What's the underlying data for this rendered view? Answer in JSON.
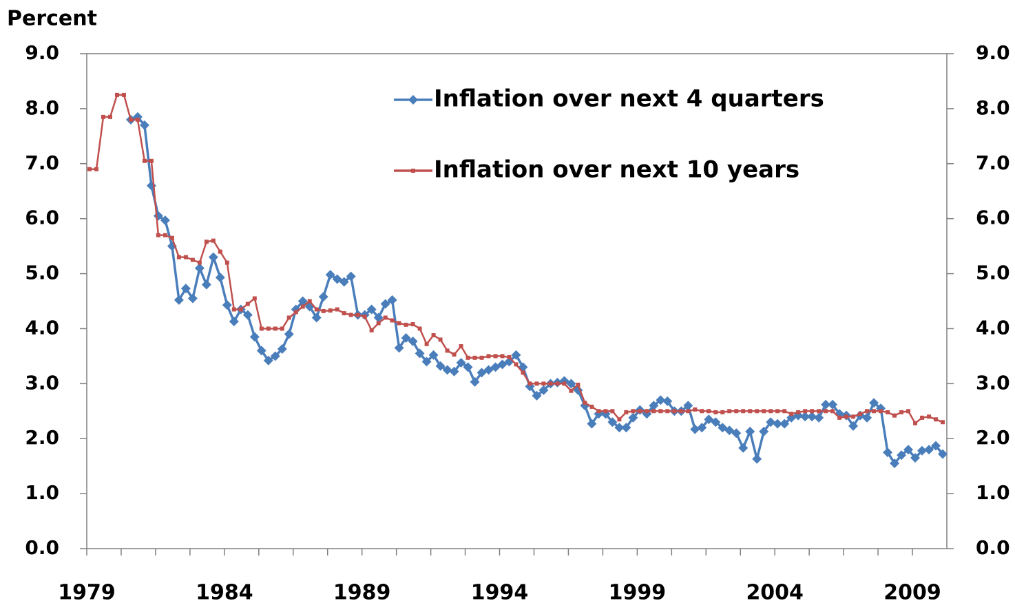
{
  "chart_data": {
    "type": "line",
    "y_label": "Percent",
    "categories": [
      "1979",
      null,
      null,
      null,
      null,
      null,
      null,
      null,
      null,
      null,
      null,
      null,
      null,
      null,
      null,
      null,
      null,
      null,
      null,
      null,
      "1984",
      null,
      null,
      null,
      null,
      null,
      null,
      null,
      null,
      null,
      null,
      null,
      null,
      null,
      null,
      null,
      null,
      null,
      null,
      null,
      "1989",
      null,
      null,
      null,
      null,
      null,
      null,
      null,
      null,
      null,
      null,
      null,
      null,
      null,
      null,
      null,
      null,
      null,
      null,
      null,
      "1994",
      null,
      null,
      null,
      null,
      null,
      null,
      null,
      null,
      null,
      null,
      null,
      null,
      null,
      null,
      null,
      null,
      null,
      null,
      null,
      "1999",
      null,
      null,
      null,
      null,
      null,
      null,
      null,
      null,
      null,
      null,
      null,
      null,
      null,
      null,
      null,
      null,
      null,
      null,
      null,
      "2004",
      null,
      null,
      null,
      null,
      null,
      null,
      null,
      null,
      null,
      null,
      null,
      null,
      null,
      null,
      null,
      null,
      null,
      null,
      null,
      "2009",
      null,
      null,
      null,
      null
    ],
    "series": [
      {
        "name": "Inflation over next 4 quarters",
        "color": "#4a7ebb",
        "marker": "diamond",
        "values": [
          null,
          null,
          null,
          null,
          null,
          null,
          7.8,
          7.85,
          7.7,
          6.6,
          6.05,
          5.97,
          5.5,
          4.52,
          4.73,
          4.55,
          5.1,
          4.8,
          5.3,
          4.93,
          4.43,
          4.13,
          4.35,
          4.25,
          3.85,
          3.6,
          3.42,
          3.5,
          3.63,
          3.9,
          4.35,
          4.5,
          4.4,
          4.2,
          4.58,
          4.98,
          4.9,
          4.85,
          4.95,
          4.25,
          4.25,
          4.35,
          4.2,
          4.45,
          4.52,
          3.65,
          3.83,
          3.77,
          3.55,
          3.4,
          3.52,
          3.32,
          3.25,
          3.22,
          3.38,
          3.3,
          3.03,
          3.2,
          3.25,
          3.3,
          3.35,
          3.4,
          3.52,
          3.3,
          2.95,
          2.78,
          2.88,
          3.0,
          3.02,
          3.05,
          3.0,
          2.88,
          2.6,
          2.27,
          2.45,
          2.45,
          2.3,
          2.2,
          2.2,
          2.38,
          2.52,
          2.45,
          2.6,
          2.7,
          2.68,
          2.5,
          2.5,
          2.6,
          2.17,
          2.2,
          2.35,
          2.3,
          2.2,
          2.15,
          2.1,
          1.83,
          2.13,
          1.63,
          2.13,
          2.3,
          2.27,
          2.27,
          2.38,
          2.42,
          2.4,
          2.4,
          2.38,
          2.62,
          2.62,
          2.45,
          2.42,
          2.23,
          2.42,
          2.38,
          2.65,
          2.55,
          1.75,
          1.55,
          1.7,
          1.8,
          1.65,
          1.78,
          1.8,
          1.87,
          1.72
        ]
      },
      {
        "name": "Inflation over next 10 years",
        "color": "#c0504d",
        "marker": "square",
        "values": [
          6.9,
          6.9,
          7.85,
          7.85,
          8.25,
          8.25,
          7.8,
          7.8,
          7.05,
          7.05,
          5.7,
          5.7,
          5.65,
          5.3,
          5.3,
          5.25,
          5.2,
          5.58,
          5.6,
          5.4,
          5.2,
          4.35,
          4.35,
          4.45,
          4.55,
          4.0,
          4.0,
          4.0,
          4.0,
          4.2,
          4.3,
          4.4,
          4.5,
          4.35,
          4.32,
          4.33,
          4.35,
          4.28,
          4.25,
          4.25,
          4.22,
          3.97,
          4.1,
          4.2,
          4.15,
          4.1,
          4.07,
          4.08,
          4.0,
          3.72,
          3.88,
          3.8,
          3.6,
          3.53,
          3.68,
          3.47,
          3.47,
          3.47,
          3.5,
          3.5,
          3.5,
          3.48,
          3.35,
          3.2,
          3.0,
          3.0,
          3.0,
          3.0,
          3.0,
          3.0,
          2.87,
          2.98,
          2.65,
          2.58,
          2.5,
          2.5,
          2.5,
          2.35,
          2.48,
          2.5,
          2.5,
          2.5,
          2.5,
          2.5,
          2.5,
          2.5,
          2.5,
          2.5,
          2.53,
          2.5,
          2.5,
          2.48,
          2.48,
          2.5,
          2.5,
          2.5,
          2.5,
          2.5,
          2.5,
          2.5,
          2.5,
          2.5,
          2.45,
          2.48,
          2.5,
          2.5,
          2.5,
          2.5,
          2.5,
          2.38,
          2.4,
          2.4,
          2.45,
          2.5,
          2.5,
          2.5,
          2.48,
          2.42,
          2.48,
          2.5,
          2.28,
          2.38,
          2.4,
          2.35,
          2.3
        ]
      }
    ],
    "ylim": [
      0,
      9
    ],
    "yticks": [
      {
        "value": 0,
        "label": "0.0"
      },
      {
        "value": 1,
        "label": "1.0"
      },
      {
        "value": 2,
        "label": "2.0"
      },
      {
        "value": 3,
        "label": "3.0"
      },
      {
        "value": 4,
        "label": "4.0"
      },
      {
        "value": 5,
        "label": "5.0"
      },
      {
        "value": 6,
        "label": "6.0"
      },
      {
        "value": 7,
        "label": "7.0"
      },
      {
        "value": 8,
        "label": "8.0"
      },
      {
        "value": 9,
        "label": "9.0"
      }
    ],
    "right_axis": true,
    "grid": false,
    "legend": "top"
  }
}
